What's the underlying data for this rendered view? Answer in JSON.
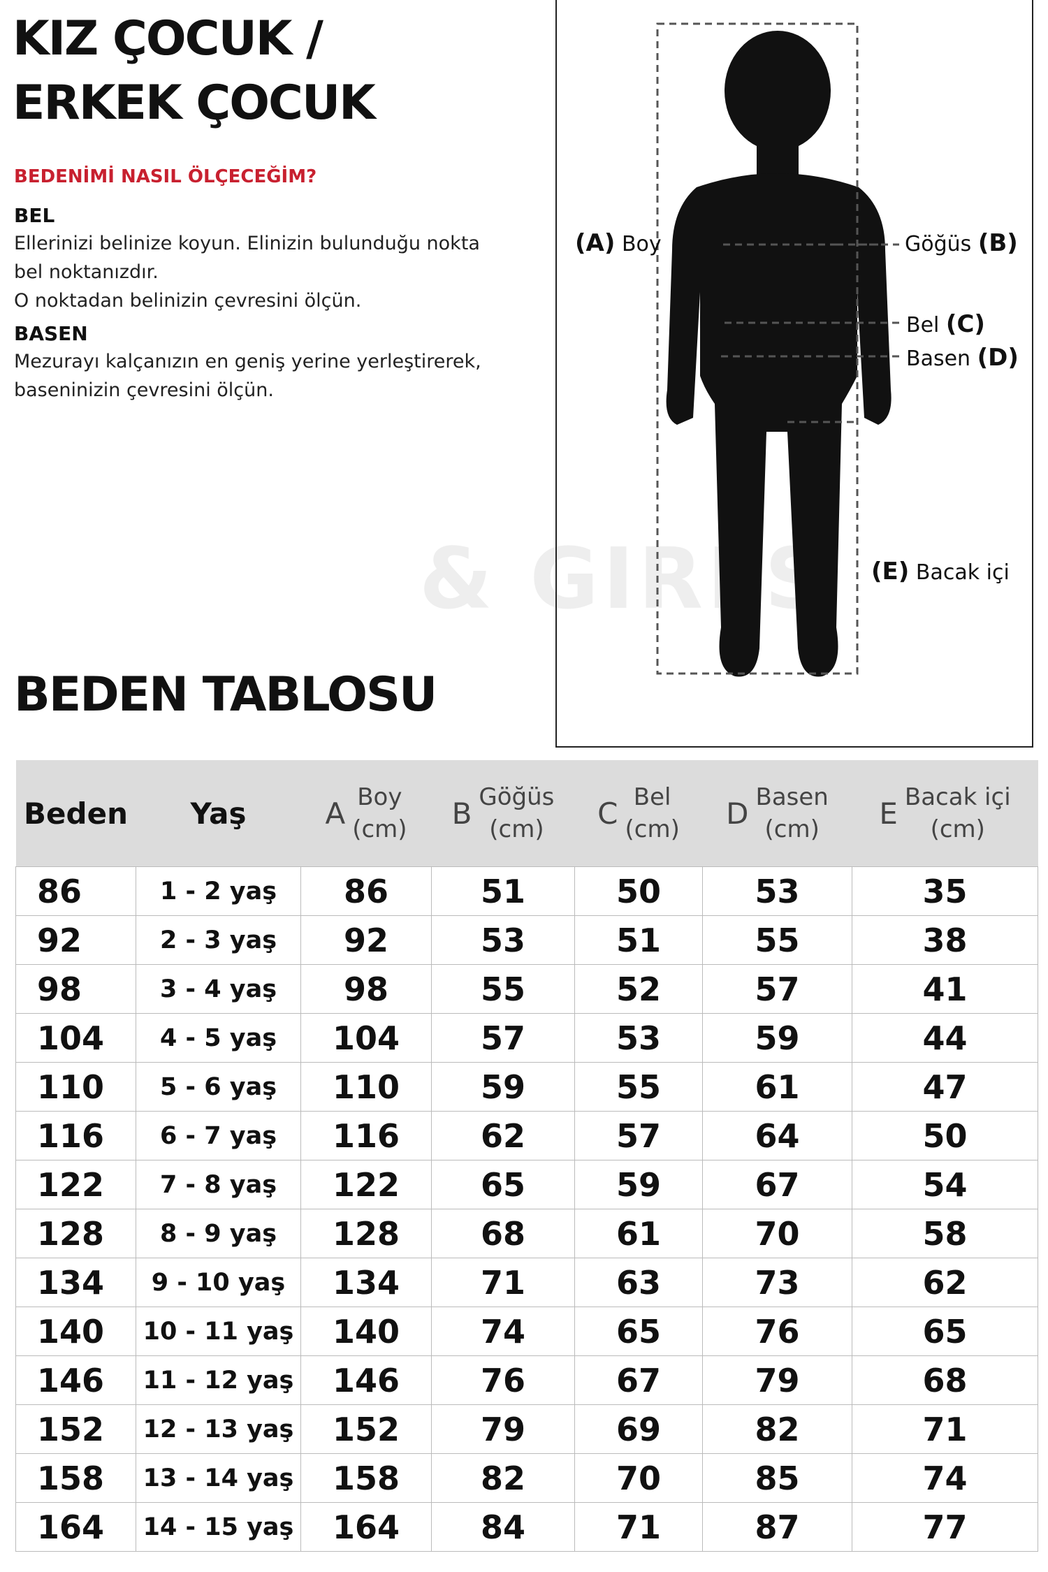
{
  "header": {
    "title_lines": [
      "KIZ ÇOCUK /",
      "ERKEK ÇOCUK"
    ]
  },
  "instructions": {
    "heading": "BEDENİMİ NASIL ÖLÇECEĞİM?",
    "sections": [
      {
        "title": "BEL",
        "lines": [
          "Ellerinizi belinize koyun. Elinizin bulunduğu nokta",
          "bel noktanızdır.",
          "O noktadan belinizin çevresini ölçün."
        ]
      },
      {
        "title": "BASEN",
        "lines": [
          "Mezurayı kalçanızın en geniş yerine yerleştirerek,",
          "baseninizin çevresini ölçün."
        ]
      }
    ]
  },
  "watermark": "& GIRLS",
  "diagram": {
    "labels": [
      {
        "letter": "(A)",
        "name": "Boy"
      },
      {
        "letter": "(B)",
        "name": "Göğüs"
      },
      {
        "letter": "(C)",
        "name": "Bel"
      },
      {
        "letter": "(D)",
        "name": "Basen"
      },
      {
        "letter": "(E)",
        "name": "Bacak içi"
      }
    ]
  },
  "table": {
    "title": "BEDEN TABLOSU",
    "columns": [
      {
        "name": "Beden"
      },
      {
        "name": "Yaş"
      },
      {
        "letter": "A",
        "name": "Boy",
        "unit": "(cm)"
      },
      {
        "letter": "B",
        "name": "Göğüs",
        "unit": "(cm)"
      },
      {
        "letter": "C",
        "name": "Bel",
        "unit": "(cm)"
      },
      {
        "letter": "D",
        "name": "Basen",
        "unit": "(cm)"
      },
      {
        "letter": "E",
        "name": "Bacak içi",
        "unit": "(cm)"
      }
    ],
    "rows": [
      [
        86,
        "1 - 2 yaş",
        86,
        51,
        50,
        53,
        35
      ],
      [
        92,
        "2 - 3 yaş",
        92,
        53,
        51,
        55,
        38
      ],
      [
        98,
        "3 - 4 yaş",
        98,
        55,
        52,
        57,
        41
      ],
      [
        104,
        "4 - 5 yaş",
        104,
        57,
        53,
        59,
        44
      ],
      [
        110,
        "5 - 6 yaş",
        110,
        59,
        55,
        61,
        47
      ],
      [
        116,
        "6 - 7 yaş",
        116,
        62,
        57,
        64,
        50
      ],
      [
        122,
        "7 - 8 yaş",
        122,
        65,
        59,
        67,
        54
      ],
      [
        128,
        "8 - 9 yaş",
        128,
        68,
        61,
        70,
        58
      ],
      [
        134,
        "9 - 10 yaş",
        134,
        71,
        63,
        73,
        62
      ],
      [
        140,
        "10 - 11 yaş",
        140,
        74,
        65,
        76,
        65
      ],
      [
        146,
        "11 - 12 yaş",
        146,
        76,
        67,
        79,
        68
      ],
      [
        152,
        "12 - 13 yaş",
        152,
        79,
        69,
        82,
        71
      ],
      [
        158,
        "13 - 14 yaş",
        158,
        82,
        70,
        85,
        74
      ],
      [
        164,
        "14 - 15 yaş",
        164,
        84,
        71,
        87,
        77
      ]
    ]
  }
}
